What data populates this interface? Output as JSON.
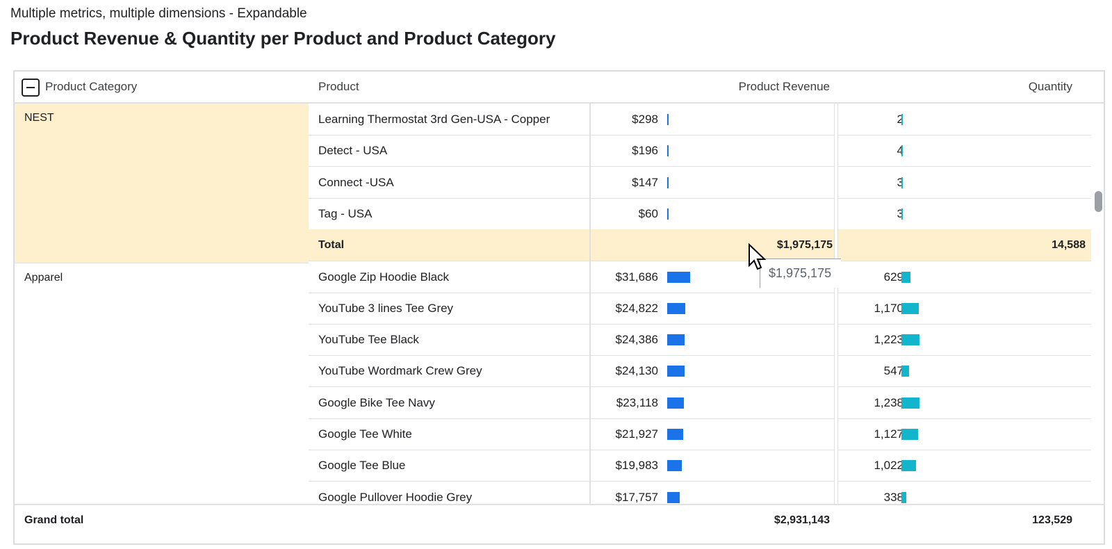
{
  "subtitle": "Multiple metrics, multiple dimensions - Expandable",
  "title": "Product Revenue & Quantity per Product and Product Category",
  "colors": {
    "revenue_bar": "#1a73e8",
    "quantity_bar": "#12b5cb",
    "highlight": "#fef0cc"
  },
  "header": {
    "product_category": "Product Category",
    "product": "Product",
    "product_revenue": "Product Revenue",
    "quantity": "Quantity"
  },
  "bar_scale": {
    "revenue_max": 31686,
    "quantity_max": 1238
  },
  "groups": [
    {
      "category": "NEST",
      "rows": [
        {
          "product": "Learning Thermostat 3rd Gen-USA - Copper",
          "revenue": "$298",
          "revenue_num": 298,
          "quantity": "2",
          "quantity_num": 2
        },
        {
          "product": "Detect - USA",
          "revenue": "$196",
          "revenue_num": 196,
          "quantity": "4",
          "quantity_num": 4
        },
        {
          "product": "Connect -USA",
          "revenue": "$147",
          "revenue_num": 147,
          "quantity": "3",
          "quantity_num": 3
        },
        {
          "product": "Tag - USA",
          "revenue": "$60",
          "revenue_num": 60,
          "quantity": "3",
          "quantity_num": 3
        }
      ],
      "total": {
        "label": "Total",
        "revenue": "$1,975,175",
        "quantity": "14,588"
      }
    },
    {
      "category": "Apparel",
      "rows": [
        {
          "product": "Google Zip Hoodie Black",
          "revenue": "$31,686",
          "revenue_num": 31686,
          "quantity": "629",
          "quantity_num": 629
        },
        {
          "product": "YouTube 3 lines Tee Grey",
          "revenue": "$24,822",
          "revenue_num": 24822,
          "quantity": "1,170",
          "quantity_num": 1170
        },
        {
          "product": "YouTube Tee Black",
          "revenue": "$24,386",
          "revenue_num": 24386,
          "quantity": "1,223",
          "quantity_num": 1223
        },
        {
          "product": "YouTube Wordmark Crew Grey",
          "revenue": "$24,130",
          "revenue_num": 24130,
          "quantity": "547",
          "quantity_num": 547
        },
        {
          "product": "Google Bike Tee Navy",
          "revenue": "$23,118",
          "revenue_num": 23118,
          "quantity": "1,238",
          "quantity_num": 1238
        },
        {
          "product": "Google Tee White",
          "revenue": "$21,927",
          "revenue_num": 21927,
          "quantity": "1,127",
          "quantity_num": 1127
        },
        {
          "product": "Google Tee Blue",
          "revenue": "$19,983",
          "revenue_num": 19983,
          "quantity": "1,022",
          "quantity_num": 1022
        },
        {
          "product": "Google Pullover Hoodie Grey",
          "revenue": "$17,757",
          "revenue_num": 17757,
          "quantity": "338",
          "quantity_num": 338
        }
      ]
    }
  ],
  "grand_total": {
    "label": "Grand total",
    "revenue": "$2,931,143",
    "quantity": "123,529"
  },
  "tooltip": {
    "text": "$1,975,175"
  }
}
